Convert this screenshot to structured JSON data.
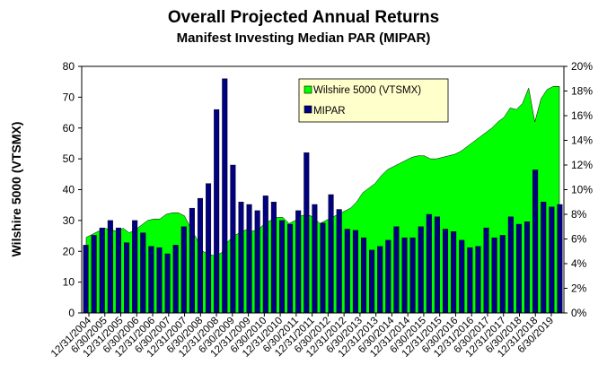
{
  "chart_data": {
    "type": "bar",
    "title": "Overall Projected Annual Returns",
    "subtitle": "Manifest Investing Median PAR (MIPAR)",
    "ylabel_left": "Wilshire 5000 (VTSMX)",
    "ylim_left": [
      0,
      80
    ],
    "yticks_left": [
      "0",
      "10",
      "20",
      "30",
      "40",
      "50",
      "60",
      "70",
      "80"
    ],
    "ylim_right": [
      0,
      20
    ],
    "yticks_right": [
      "0%",
      "2%",
      "4%",
      "6%",
      "8%",
      "10%",
      "12%",
      "14%",
      "16%",
      "18%",
      "20%"
    ],
    "x_tick_labels": [
      "12/31/2004",
      "6/30/2005",
      "12/31/2005",
      "6/30/2006",
      "12/31/2006",
      "6/30/2007",
      "12/31/2007",
      "6/30/2008",
      "12/31/2008",
      "6/30/2009",
      "12/31/2009",
      "6/30/2010",
      "12/31/2010",
      "6/30/2011",
      "12/31/2011",
      "6/30/2012",
      "12/31/2012",
      "6/30/2013",
      "12/31/2013",
      "6/30/2014",
      "12/31/2014",
      "6/30/2015",
      "12/31/2015",
      "6/30/2016",
      "12/31/2016",
      "6/30/2017",
      "12/31/2017",
      "6/30/2018",
      "12/31/2018",
      "6/30/2019"
    ],
    "grid": false,
    "legend_position": "top-center",
    "series": [
      {
        "name": "Wilshire 5000 (VTSMX)",
        "type": "area",
        "axis": "left",
        "color": "#00ff00",
        "values": [
          24.5,
          25.5,
          26.5,
          27.5,
          27.0,
          26.5,
          27.5,
          26.0,
          27.0,
          28.5,
          30.0,
          30.5,
          30.5,
          32.0,
          32.5,
          32.5,
          31.5,
          27.5,
          24.0,
          20.0,
          19.0,
          18.5,
          19.5,
          23.0,
          25.0,
          26.0,
          27.0,
          26.5,
          27.0,
          29.0,
          30.0,
          31.0,
          31.0,
          29.0,
          30.0,
          31.5,
          32.0,
          31.0,
          29.0,
          30.0,
          31.0,
          32.0,
          33.0,
          34.0,
          36.0,
          39.0,
          40.5,
          42.0,
          44.5,
          46.5,
          47.5,
          48.5,
          49.5,
          50.5,
          51.0,
          51.0,
          50.0,
          50.0,
          50.5,
          51.0,
          51.5,
          52.5,
          54.0,
          55.5,
          57.0,
          58.5,
          60.0,
          62.0,
          63.5,
          66.5,
          66.0,
          68.0,
          73.0,
          62.0,
          69.5,
          72.5,
          73.5,
          73.5
        ]
      },
      {
        "name": "MIPAR",
        "type": "bar",
        "axis": "right",
        "color": "#000080",
        "values": [
          5.5,
          6.3,
          6.9,
          7.5,
          6.9,
          5.7,
          7.5,
          6.5,
          5.4,
          5.3,
          4.8,
          5.5,
          7.0,
          8.5,
          9.3,
          10.5,
          16.5,
          19.0,
          12.0,
          9.0,
          8.8,
          8.3,
          9.5,
          9.0,
          7.5,
          7.2,
          8.3,
          13.0,
          8.8,
          7.3,
          9.6,
          8.4,
          6.8,
          6.7,
          6.1,
          5.1,
          5.4,
          5.9,
          7.0,
          6.1,
          6.1,
          7.0,
          8.0,
          7.8,
          6.8,
          6.6,
          5.9,
          5.3,
          5.4,
          6.9,
          6.1,
          6.3,
          7.8,
          7.2,
          7.4,
          11.6,
          9.0,
          8.6,
          8.8
        ]
      }
    ]
  }
}
